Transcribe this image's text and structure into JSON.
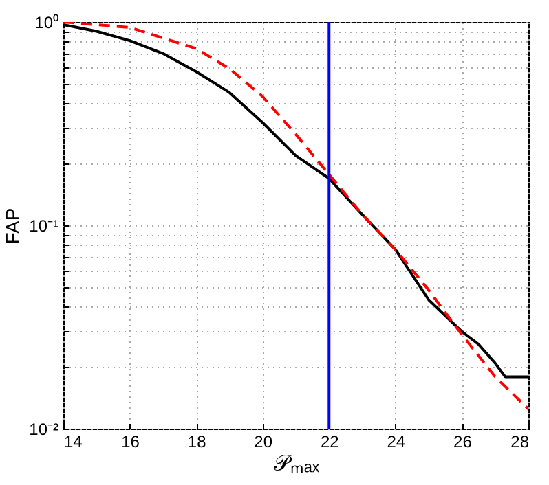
{
  "chart_data": {
    "type": "line",
    "xlabel": "𝒫ₘₐₓ",
    "ylabel": "FAP",
    "xlim": [
      14,
      28
    ],
    "xticks": [
      14,
      16,
      18,
      20,
      22,
      24,
      26,
      28
    ],
    "ylim": [
      0.01,
      1
    ],
    "log": "y",
    "yticks": [
      {
        "value": 0.01,
        "label": "10⁻²"
      },
      {
        "value": 0.02,
        "label": null
      },
      {
        "value": 0.03,
        "label": null
      },
      {
        "value": 0.04,
        "label": null
      },
      {
        "value": 0.05,
        "label": null
      },
      {
        "value": 0.06,
        "label": null
      },
      {
        "value": 0.07,
        "label": null
      },
      {
        "value": 0.08,
        "label": null
      },
      {
        "value": 0.09,
        "label": null
      },
      {
        "value": 0.1,
        "label": "10⁻¹"
      },
      {
        "value": 0.2,
        "label": null
      },
      {
        "value": 0.3,
        "label": null
      },
      {
        "value": 0.4,
        "label": null
      },
      {
        "value": 0.5,
        "label": null
      },
      {
        "value": 0.6,
        "label": null
      },
      {
        "value": 0.7,
        "label": null
      },
      {
        "value": 0.8,
        "label": null
      },
      {
        "value": 0.9,
        "label": null
      },
      {
        "value": 1,
        "label": "10⁰"
      }
    ],
    "grid": true,
    "series": [
      {
        "color": "#000000",
        "line_style": "solid",
        "x": [
          14,
          15,
          16,
          17,
          18,
          19,
          20,
          21,
          22,
          23,
          24,
          25,
          26,
          26.5,
          27,
          27.3,
          28
        ],
        "values": [
          0.97,
          0.9,
          0.81,
          0.7,
          0.57,
          0.45,
          0.32,
          0.22,
          0.17,
          0.113,
          0.076,
          0.043,
          0.03,
          0.026,
          0.021,
          0.018,
          0.018
        ]
      },
      {
        "color": "#ff0000",
        "line_style": "dashed",
        "x": [
          14,
          16,
          18,
          19,
          20,
          21,
          22,
          23,
          24,
          25,
          26,
          27,
          28
        ],
        "values": [
          1.0,
          0.94,
          0.74,
          0.59,
          0.43,
          0.28,
          0.178,
          0.113,
          0.076,
          0.048,
          0.029,
          0.018,
          0.0125
        ]
      }
    ],
    "ref_lines": [
      {
        "axis": "x",
        "value": 22,
        "color": "#0000ff"
      }
    ]
  }
}
